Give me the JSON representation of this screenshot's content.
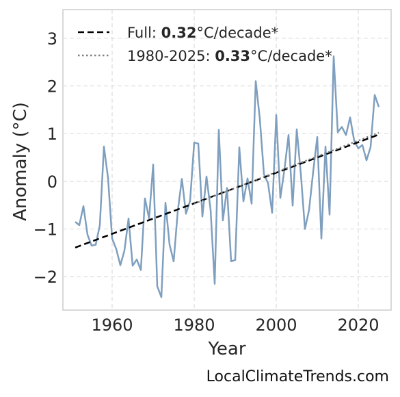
{
  "chart_data": {
    "type": "line",
    "xlabel": "Year",
    "ylabel": "Anomaly (°C)",
    "xlim": [
      1948,
      2028
    ],
    "ylim": [
      -2.7,
      3.6
    ],
    "xticks": [
      1960,
      1980,
      2000,
      2020
    ],
    "yticks": [
      -2,
      -1,
      0,
      1,
      2,
      3
    ],
    "ytick_labels": [
      "−2",
      "−1",
      "0",
      "1",
      "2",
      "3"
    ],
    "grid": true,
    "legend_position": "top-left",
    "series": [
      {
        "style": "solid",
        "color": "#7f9fbf",
        "x": [
          1951,
          1952,
          1953,
          1954,
          1955,
          1956,
          1957,
          1958,
          1959,
          1960,
          1961,
          1962,
          1963,
          1964,
          1965,
          1966,
          1967,
          1968,
          1969,
          1970,
          1971,
          1972,
          1973,
          1974,
          1975,
          1976,
          1977,
          1978,
          1979,
          1980,
          1981,
          1982,
          1983,
          1984,
          1985,
          1986,
          1987,
          1988,
          1989,
          1990,
          1991,
          1992,
          1993,
          1994,
          1995,
          1996,
          1997,
          1998,
          1999,
          2000,
          2001,
          2002,
          2003,
          2004,
          2005,
          2006,
          2007,
          2008,
          2009,
          2010,
          2011,
          2012,
          2013,
          2014,
          2015,
          2016,
          2017,
          2018,
          2019,
          2020,
          2021,
          2022,
          2023,
          2024,
          2025
        ],
        "y": [
          -0.85,
          -0.92,
          -0.52,
          -1.12,
          -1.35,
          -1.33,
          -0.92,
          0.73,
          0.07,
          -1.2,
          -1.42,
          -1.76,
          -1.45,
          -0.78,
          -1.77,
          -1.64,
          -1.86,
          -0.36,
          -0.78,
          0.35,
          -2.2,
          -2.43,
          -0.45,
          -1.33,
          -1.68,
          -0.62,
          0.05,
          -0.68,
          -0.41,
          0.81,
          0.79,
          -0.74,
          0.1,
          -0.6,
          -2.15,
          1.08,
          -0.82,
          -0.14,
          -1.68,
          -1.65,
          0.71,
          -0.42,
          0.06,
          -0.47,
          2.1,
          1.31,
          0.15,
          -0.04,
          -0.66,
          1.39,
          -0.35,
          0.25,
          0.97,
          -0.51,
          1.09,
          0.15,
          -1.0,
          -0.6,
          0.2,
          0.93,
          -1.2,
          0.73,
          -0.7,
          2.62,
          1.03,
          1.14,
          0.97,
          1.34,
          0.85,
          0.69,
          0.76,
          0.44,
          0.72,
          1.81,
          1.56
        ]
      },
      {
        "label_prefix": "Full: ",
        "label_value": "0.32",
        "label_suffix": "°C/decade*",
        "style": "dashed",
        "color": "#000000",
        "x": [
          1951,
          2025
        ],
        "y": [
          -1.39,
          0.98
        ]
      },
      {
        "label_prefix": "1980-2025: ",
        "label_value": "0.33",
        "label_suffix": "°C/decade*",
        "style": "dotted",
        "color": "#7f7f7f",
        "x": [
          1980,
          2025
        ],
        "y": [
          -0.47,
          1.02
        ]
      }
    ]
  },
  "footer": "LocalClimateTrends.com"
}
